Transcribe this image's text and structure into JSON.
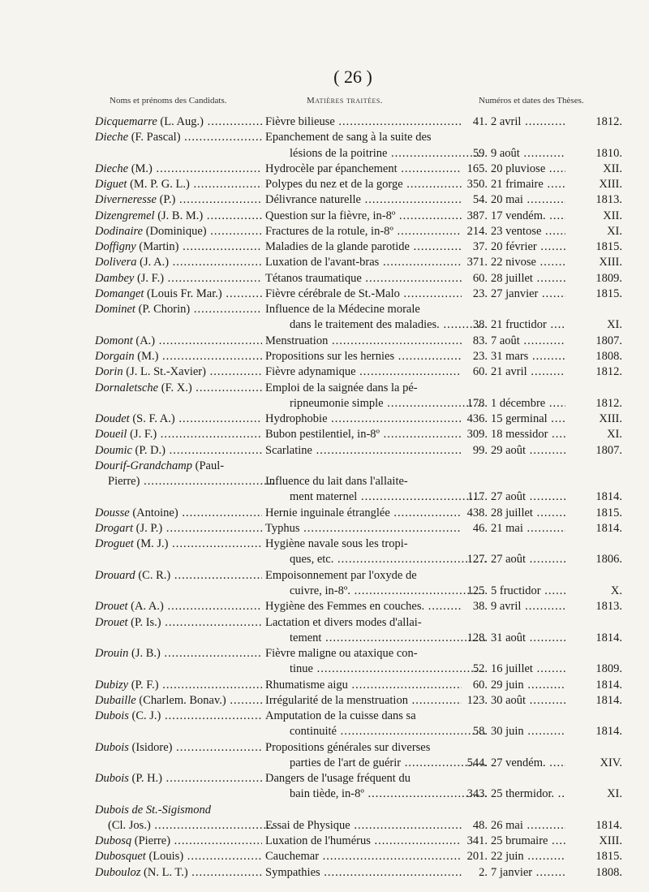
{
  "page_number": "( 26 )",
  "headers": {
    "names": "Noms et prénoms des Candidats.",
    "subjects": "Matières traitées.",
    "theses": "Numéros et dates des Thèses."
  },
  "entries": [
    {
      "lines": [
        {
          "surname": "Dicquemarre",
          "rest": " (L. Aug.)",
          "subject": "Fièvre bilieuse",
          "number": "41.",
          "date": "2 avril",
          "year": "1812."
        }
      ]
    },
    {
      "lines": [
        {
          "surname": "Dieche",
          "rest": " (F. Pascal)",
          "subject": "Epanchement de sang à la suite des"
        },
        {
          "subject": "lésions de la poitrine",
          "number": "59.",
          "date": "9 août",
          "year": "1810."
        }
      ]
    },
    {
      "lines": [
        {
          "surname": "Dieche",
          "rest": " (M.)",
          "subject": "Hydrocèle par épanchement",
          "number": "165.",
          "date": "20 pluviose",
          "year": "XII."
        }
      ]
    },
    {
      "lines": [
        {
          "surname": "Diguet",
          "rest": " (M. P. G. L.)",
          "subject": "Polypes du nez et de la gorge",
          "number": "350.",
          "date": "21 frimaire",
          "year": "XIII."
        }
      ]
    },
    {
      "lines": [
        {
          "surname": "Diverneresse",
          "rest": " (P.)",
          "subject": "Délivrance naturelle",
          "number": "54.",
          "date": "20 mai",
          "year": "1813."
        }
      ]
    },
    {
      "lines": [
        {
          "surname": "Dizengremel",
          "rest": " (J. B. M.)",
          "subject": "Question sur la fièvre, in-8º",
          "number": "387.",
          "date": "17 vendém.",
          "year": "XII."
        }
      ]
    },
    {
      "lines": [
        {
          "surname": "Dodinaire",
          "rest": " (Dominique)",
          "subject": "Fractures de la rotule, in-8º",
          "number": "214.",
          "date": "23 ventose",
          "year": "XI."
        }
      ]
    },
    {
      "lines": [
        {
          "surname": "Doffigny",
          "rest": " (Martin)",
          "subject": "Maladies de la glande parotide",
          "number": "37.",
          "date": "20 février",
          "year": "1815."
        }
      ]
    },
    {
      "lines": [
        {
          "surname": "Dolivera",
          "rest": " (J. A.)",
          "subject": "Luxation de l'avant-bras",
          "number": "371.",
          "date": "22 nivose",
          "year": "XIII."
        }
      ]
    },
    {
      "lines": [
        {
          "surname": "Dambey",
          "rest": " (J. F.)",
          "subject": "Tétanos traumatique",
          "number": "60.",
          "date": "28 juillet",
          "year": "1809."
        }
      ]
    },
    {
      "lines": [
        {
          "surname": "Domanget",
          "rest": " (Louis Fr. Mar.)",
          "subject": "Fièvre cérébrale de St.-Malo",
          "number": "23.",
          "date": "27 janvier",
          "year": "1815."
        }
      ]
    },
    {
      "lines": [
        {
          "surname": "Dominet",
          "rest": " (P. Chorin)",
          "subject": "Influence de la Médecine morale"
        },
        {
          "subject": "dans le traitement des maladies.",
          "number": "38.",
          "date": "21 fructidor",
          "year": "XI."
        }
      ]
    },
    {
      "lines": [
        {
          "surname": "Domont",
          "rest": " (A.)",
          "subject": "Menstruation",
          "number": "83.",
          "date": "7 août",
          "year": "1807."
        }
      ]
    },
    {
      "lines": [
        {
          "surname": "Dorgain",
          "rest": " (M.)",
          "subject": "Propositions sur les hernies",
          "number": "23.",
          "date": "31 mars",
          "year": "1808."
        }
      ]
    },
    {
      "lines": [
        {
          "surname": "Dorin",
          "rest": " (J. L. St.-Xavier)",
          "subject": "Fièvre adynamique",
          "number": "60.",
          "date": "21 avril",
          "year": "1812."
        }
      ]
    },
    {
      "lines": [
        {
          "surname": "Dornaletsche",
          "rest": " (F. X.)",
          "subject": "Emploi de la saignée dans la pé-"
        },
        {
          "subject": "ripneumonie simple",
          "number": "178.",
          "date": "1 décembre",
          "year": "1812."
        }
      ]
    },
    {
      "lines": [
        {
          "surname": "Doudet",
          "rest": " (S. F. A.)",
          "subject": "Hydrophobie",
          "number": "436.",
          "date": "15 germinal",
          "year": "XIII."
        }
      ]
    },
    {
      "lines": [
        {
          "surname": "Doueil",
          "rest": " (J. F.)",
          "subject": "Bubon pestilentiel, in-8º",
          "number": "309.",
          "date": "18 messidor",
          "year": "XI."
        }
      ]
    },
    {
      "lines": [
        {
          "surname": "Doumic",
          "rest": " (P. D.)",
          "subject": "Scarlatine",
          "number": "99.",
          "date": "29 août",
          "year": "1807."
        }
      ]
    },
    {
      "lines": [
        {
          "surname": "Dourif-Grandchamp",
          "rest": " (Paul-"
        },
        {
          "name_cont": "Pierre)",
          "subject": "Influence du lait dans l'allaite-"
        },
        {
          "subject": "ment maternel",
          "number": "117.",
          "date": "27 août",
          "year": "1814."
        }
      ]
    },
    {
      "lines": [
        {
          "surname": "Dousse",
          "rest": " (Antoine)",
          "subject": "Hernie inguinale étranglée",
          "number": "438.",
          "date": "28 juillet",
          "year": "1815."
        }
      ]
    },
    {
      "lines": [
        {
          "surname": "Drogart",
          "rest": " (J. P.)",
          "subject": "Typhus",
          "number": "46.",
          "date": "21 mai",
          "year": "1814."
        }
      ]
    },
    {
      "lines": [
        {
          "surname": "Droguet",
          "rest": " (M. J.)",
          "subject": "Hygiène navale sous les tropi-"
        },
        {
          "subject": "ques, etc.",
          "number": "127.",
          "date": "27 août",
          "year": "1806."
        }
      ]
    },
    {
      "lines": [
        {
          "surname": "Drouard",
          "rest": " (C. R.)",
          "subject": "Empoisonnement par l'oxyde de"
        },
        {
          "subject": "cuivre, in-8º.",
          "number": "125.",
          "date": "5 fructidor",
          "year": "X."
        }
      ]
    },
    {
      "lines": [
        {
          "surname": "Drouet",
          "rest": " (A. A.)",
          "subject": "Hygiène des Femmes en couches.",
          "number": "38.",
          "date": "9 avril",
          "year": "1813."
        }
      ]
    },
    {
      "lines": [
        {
          "surname": "Drouet",
          "rest": " (P. Is.)",
          "subject": "Lactation et divers modes d'allai-"
        },
        {
          "subject": "tement",
          "number": "128.",
          "date": "31 août",
          "year": "1814."
        }
      ]
    },
    {
      "lines": [
        {
          "surname": "Drouin",
          "rest": " (J. B.)",
          "subject": "Fièvre maligne ou ataxique con-"
        },
        {
          "subject": "tinue",
          "number": "52.",
          "date": "16 juillet",
          "year": "1809."
        }
      ]
    },
    {
      "lines": [
        {
          "surname": "Dubizy",
          "rest": " (P. F.)",
          "subject": "Rhumatisme aigu",
          "number": "60.",
          "date": "29 juin",
          "year": "1814."
        }
      ]
    },
    {
      "lines": [
        {
          "surname": "Dubaille",
          "rest": " (Charlem. Bonav.)",
          "subject": "Irrégularité de la menstruation",
          "number": "123.",
          "date": "30 août",
          "year": "1814."
        }
      ]
    },
    {
      "lines": [
        {
          "surname": "Dubois",
          "rest": " (C. J.)",
          "subject": "Amputation de la cuisse dans sa"
        },
        {
          "subject": "continuité",
          "number": "58.",
          "date": "30 juin",
          "year": "1814."
        }
      ]
    },
    {
      "lines": [
        {
          "surname": "Dubois",
          "rest": " (Isidore)",
          "subject": "Propositions générales sur diverses"
        },
        {
          "subject": "parties de l'art de guérir",
          "number": "544.",
          "date": "27 vendém.",
          "year": "XIV."
        }
      ]
    },
    {
      "lines": [
        {
          "surname": "Dubois",
          "rest": " (P. H.)",
          "subject": "Dangers de l'usage fréquent du"
        },
        {
          "subject": "bain tiède, in-8º",
          "number": "343.",
          "date": "25 thermidor.",
          "year": "XI."
        }
      ]
    },
    {
      "lines": [
        {
          "surname": "Dubois de St.-Sigismond",
          "rest": ""
        },
        {
          "name_cont": "(Cl. Jos.)",
          "subject": "Essai de Physique",
          "number": "48.",
          "date": "26 mai",
          "year": "1814."
        }
      ]
    },
    {
      "lines": [
        {
          "surname": "Dubosq",
          "rest": " (Pierre)",
          "subject": "Luxation de l'humérus",
          "number": "341.",
          "date": "25 brumaire",
          "year": "XIII."
        }
      ]
    },
    {
      "lines": [
        {
          "surname": "Dubosquet",
          "rest": " (Louis)",
          "subject": "Cauchemar",
          "number": "201.",
          "date": "22 juin",
          "year": "1815."
        }
      ]
    },
    {
      "lines": [
        {
          "surname": "Dubouloz",
          "rest": " (N. L. T.)",
          "subject": "Sympathies",
          "number": "2.",
          "date": "7 janvier",
          "year": "1808."
        }
      ]
    }
  ]
}
